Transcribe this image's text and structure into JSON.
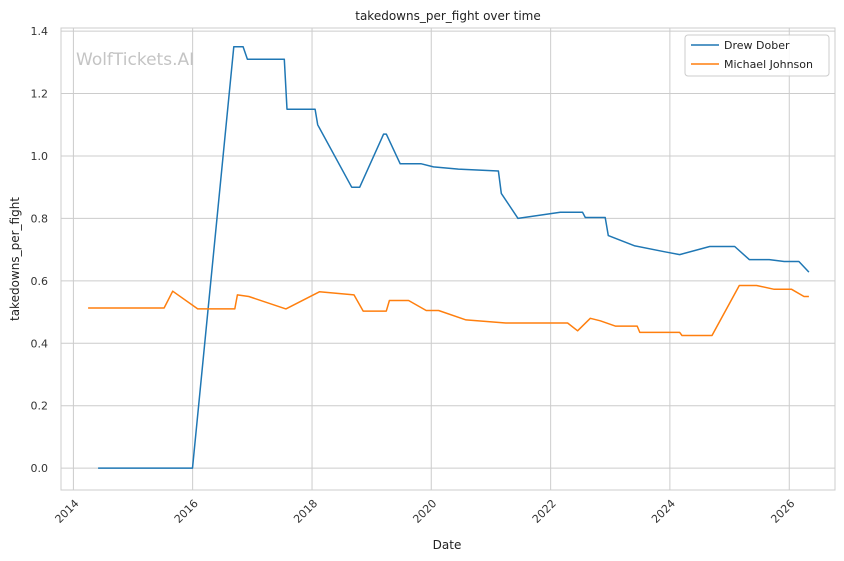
{
  "chart_data": {
    "type": "line",
    "title": "takedowns_per_fight over time",
    "xlabel": "Date",
    "ylabel": "takedowns_per_fight",
    "watermark": "WolfTickets.AI",
    "x_ticks": [
      "2014",
      "2016",
      "2018",
      "2020",
      "2022",
      "2024",
      "2026"
    ],
    "y_ticks": [
      "0.0",
      "0.2",
      "0.4",
      "0.6",
      "0.8",
      "1.0",
      "1.2",
      "1.4"
    ],
    "xlim": [
      "2013-10-17",
      "2026-10-08"
    ],
    "ylim": [
      -0.07,
      1.41
    ],
    "grid": true,
    "legend_position": "top-right",
    "series": [
      {
        "name": "Drew Dober",
        "color": "#1f77b4",
        "points": [
          [
            "2014-06-01",
            0.0
          ],
          [
            "2015-12-31",
            0.0
          ],
          [
            "2016-09-09",
            1.35
          ],
          [
            "2016-11-05",
            1.35
          ],
          [
            "2016-12-01",
            1.31
          ],
          [
            "2017-07-15",
            1.31
          ],
          [
            "2017-08-01",
            1.15
          ],
          [
            "2018-01-20",
            1.15
          ],
          [
            "2018-02-05",
            1.1
          ],
          [
            "2018-09-01",
            0.9
          ],
          [
            "2018-10-20",
            0.9
          ],
          [
            "2019-03-15",
            1.07
          ],
          [
            "2019-04-01",
            1.07
          ],
          [
            "2019-06-25",
            0.975
          ],
          [
            "2019-11-01",
            0.975
          ],
          [
            "2020-01-15",
            0.965
          ],
          [
            "2020-06-15",
            0.958
          ],
          [
            "2021-02-15",
            0.952
          ],
          [
            "2021-03-05",
            0.88
          ],
          [
            "2021-06-15",
            0.8
          ],
          [
            "2022-03-01",
            0.82
          ],
          [
            "2022-07-15",
            0.82
          ],
          [
            "2022-08-01",
            0.803
          ],
          [
            "2022-12-01",
            0.803
          ],
          [
            "2022-12-20",
            0.745
          ],
          [
            "2023-06-01",
            0.712
          ],
          [
            "2023-12-01",
            0.693
          ],
          [
            "2024-03-01",
            0.684
          ],
          [
            "2024-09-01",
            0.71
          ],
          [
            "2025-02-01",
            0.71
          ],
          [
            "2025-05-01",
            0.668
          ],
          [
            "2025-09-01",
            0.668
          ],
          [
            "2025-12-01",
            0.662
          ],
          [
            "2026-03-01",
            0.662
          ],
          [
            "2026-05-01",
            0.628
          ]
        ]
      },
      {
        "name": "Michael Johnson",
        "color": "#ff7f0e",
        "points": [
          [
            "2014-04-01",
            0.513
          ],
          [
            "2015-07-10",
            0.513
          ],
          [
            "2015-09-01",
            0.567
          ],
          [
            "2016-02-01",
            0.51
          ],
          [
            "2016-09-15",
            0.51
          ],
          [
            "2016-10-01",
            0.555
          ],
          [
            "2016-12-10",
            0.55
          ],
          [
            "2017-07-25",
            0.51
          ],
          [
            "2018-02-15",
            0.565
          ],
          [
            "2018-09-15",
            0.555
          ],
          [
            "2018-11-10",
            0.503
          ],
          [
            "2019-04-01",
            0.503
          ],
          [
            "2019-04-20",
            0.537
          ],
          [
            "2019-08-15",
            0.537
          ],
          [
            "2019-12-01",
            0.505
          ],
          [
            "2020-02-15",
            0.505
          ],
          [
            "2020-08-01",
            0.475
          ],
          [
            "2021-04-01",
            0.465
          ],
          [
            "2022-04-15",
            0.465
          ],
          [
            "2022-06-15",
            0.44
          ],
          [
            "2022-09-01",
            0.48
          ],
          [
            "2022-11-01",
            0.472
          ],
          [
            "2023-02-01",
            0.455
          ],
          [
            "2023-06-15",
            0.455
          ],
          [
            "2023-07-01",
            0.435
          ],
          [
            "2024-03-01",
            0.435
          ],
          [
            "2024-03-15",
            0.425
          ],
          [
            "2024-09-15",
            0.425
          ],
          [
            "2025-03-01",
            0.585
          ],
          [
            "2025-06-15",
            0.585
          ],
          [
            "2025-10-01",
            0.573
          ],
          [
            "2026-01-15",
            0.573
          ],
          [
            "2026-04-01",
            0.55
          ],
          [
            "2026-05-01",
            0.55
          ]
        ]
      }
    ]
  }
}
